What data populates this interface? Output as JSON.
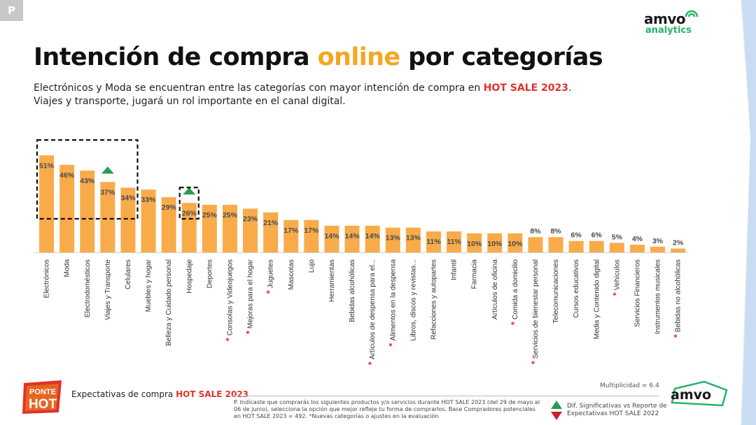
{
  "page": {
    "badge": "P"
  },
  "logo_top": {
    "brand": "amvo",
    "sub": "analytics",
    "brand_color": "#29b36a"
  },
  "title": {
    "part1": "Intención de compra ",
    "highlight": "online",
    "part2": " por categorías",
    "highlight_color": "#f5a623"
  },
  "subtitle": {
    "line1_pre": "Electrónicos y Moda se encuentran entre las categorías con mayor intención de compra en ",
    "line1_highlight": "HOT SALE 2023",
    "line1_post": ".",
    "line2": "Viajes y transporte, jugará un rol importante en el canal digital."
  },
  "chart_data": {
    "type": "bar",
    "bar_color": "#f9ab4a",
    "categories": [
      "Electrónicos",
      "Moda",
      "Electrodomésticos",
      "Viajes y Transporte",
      "Celulares",
      "Muebles y hogar",
      "Belleza y Cuidado personal",
      "Hospedaje",
      "Deportes",
      "Consolas y Videojuegos",
      "Mejoras para el hogar",
      "Juguetes",
      "Mascotas",
      "Lujo",
      "Herramientas",
      "Bebidas alcohólicas",
      "Artículos de despensa para el...",
      "Alimentos en la despensa",
      "Libros, discos y revistas...",
      "Refacciones y autopartes",
      "Infantil",
      "Farmacia",
      "Artículos de oficina",
      "Comida a domicilio",
      "Servicios de bienestar personal",
      "Telecomunicaciones",
      "Cursos educativos",
      "Media y Contenido digital",
      "Vehículos",
      "Servicios Financieros",
      "Instrumentos musicales",
      "Bebidas no alcohólicas"
    ],
    "values": [
      51,
      46,
      43,
      37,
      34,
      33,
      29,
      26,
      25,
      25,
      23,
      21,
      17,
      17,
      14,
      14,
      14,
      13,
      13,
      11,
      11,
      10,
      10,
      10,
      8,
      8,
      6,
      6,
      5,
      4,
      3,
      2
    ],
    "data_labels": [
      "51%",
      "46%",
      "43%",
      "37%",
      "34%",
      "33%",
      "29%",
      "26%",
      "25%",
      "25%",
      "23%",
      "21%",
      "17%",
      "17%",
      "14%",
      "14%",
      "14%",
      "13%",
      "13%",
      "11%",
      "11%",
      "10%",
      "10%",
      "10%",
      "8%",
      "8%",
      "6%",
      "6%",
      "5%",
      "4%",
      "3%",
      "2%"
    ],
    "new_category_flags": [
      false,
      false,
      false,
      false,
      false,
      false,
      false,
      false,
      false,
      true,
      true,
      true,
      false,
      false,
      false,
      false,
      true,
      true,
      false,
      false,
      false,
      false,
      false,
      true,
      true,
      false,
      false,
      false,
      true,
      false,
      false,
      true
    ],
    "significant_up": [
      "Viajes y Transporte",
      "Hospedaje"
    ],
    "highlight_groups": [
      [
        "Electrónicos",
        "Moda",
        "Electrodomésticos",
        "Viajes y Transporte",
        "Celulares"
      ],
      [
        "Hospedaje"
      ]
    ],
    "ylim": [
      0,
      55
    ],
    "grid": false,
    "title": "",
    "xlabel": "",
    "ylabel": ""
  },
  "footer": {
    "campaign_logo": "PONTE HOT",
    "label_pre": "Expectativas de compra ",
    "label_highlight": "HOT SALE 2023",
    "multiplicity": "Multiplicidad = 6.4",
    "footnote_main": "P. Indícaste que comprarás los siguientes productos y/o servicios durante HOT SALE 2023 (del 29 de mayo al 06 de junio), selecciona la opción que mejor refleje tu forma de comprarlos. Base Compradores potenciales en HOT SALE 2023 = 492. ",
    "footnote_star": "*",
    "footnote_tail": "Nuevas categorías o ajustes en la evaluación",
    "legend_line1": "Dif. Significativas vs Reporte de",
    "legend_line2": "Expectativas HOT SALE 2022",
    "brand": "amvo"
  },
  "colors": {
    "up": "#22a04b",
    "down": "#c8202c",
    "star": "#e0322b",
    "band": "#d8e8f8"
  }
}
